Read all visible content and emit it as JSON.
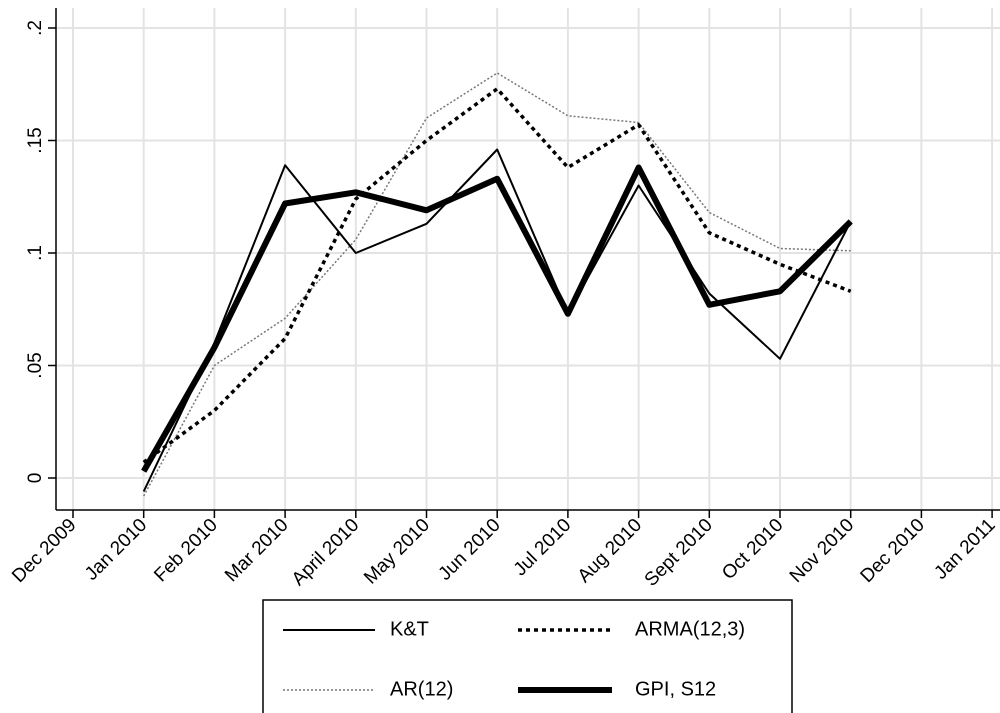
{
  "chart_data": {
    "type": "line",
    "title": "",
    "xlabel": "",
    "ylabel": "",
    "x_ticks": [
      "Dec 2009",
      "Jan 2010",
      "Feb 2010",
      "Mar 2010",
      "April 2010",
      "May 2010",
      "Jun 2010",
      "Jul 2010",
      "Aug 2010",
      "Sept 2010",
      "Oct 2010",
      "Nov 2010",
      "Dec 2010",
      "Jan 2011"
    ],
    "y_ticks": [
      0,
      0.05,
      0.1,
      0.15,
      0.2
    ],
    "y_tick_labels": [
      "0",
      ".05",
      ".1",
      ".15",
      ".2"
    ],
    "ylim": [
      -0.015,
      0.205
    ],
    "x": [
      "Jan 2010",
      "Feb 2010",
      "Mar 2010",
      "April 2010",
      "May 2010",
      "Jun 2010",
      "Jul 2010",
      "Aug 2010",
      "Sept 2010",
      "Oct 2010",
      "Nov 2010"
    ],
    "grid": true,
    "legend_position": "bottom",
    "series": [
      {
        "name": "K&T",
        "style": "solid-thin",
        "color": "#000000",
        "values": [
          -0.006,
          0.06,
          0.139,
          0.1,
          0.113,
          0.146,
          0.073,
          0.13,
          0.082,
          0.053,
          0.114
        ]
      },
      {
        "name": "ARMA(12,3)",
        "style": "dotted-bold",
        "color": "#000000",
        "values": [
          0.007,
          0.03,
          0.062,
          0.124,
          0.15,
          0.173,
          0.138,
          0.157,
          0.109,
          0.095,
          0.083
        ]
      },
      {
        "name": "AR(12)",
        "style": "dotted-thin-gray",
        "color": "#777777",
        "values": [
          -0.008,
          0.05,
          0.071,
          0.106,
          0.16,
          0.18,
          0.161,
          0.158,
          0.118,
          0.102,
          0.101
        ]
      },
      {
        "name": "GPI, S12",
        "style": "solid-thick",
        "color": "#000000",
        "values": [
          0.003,
          0.058,
          0.122,
          0.127,
          0.119,
          0.133,
          0.073,
          0.138,
          0.077,
          0.083,
          0.114
        ]
      }
    ]
  }
}
